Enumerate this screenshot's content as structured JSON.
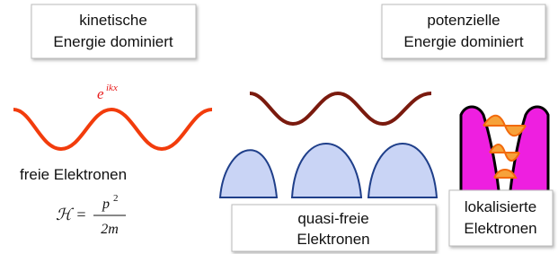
{
  "boxes": {
    "kinetic": {
      "lines": [
        "kinetische",
        "Energie dominiert"
      ]
    },
    "potential": {
      "lines": [
        "potenzielle",
        "Energie dominiert"
      ]
    }
  },
  "plane_wave": {
    "base": "e",
    "exponent": "ikx"
  },
  "free": {
    "label": "freie Elektronen",
    "formula": {
      "lhs": "ℋ =",
      "numerator": "p",
      "exponent": "2",
      "denominator": "2m"
    }
  },
  "quasi_free": {
    "lines": [
      "quasi-freie",
      "Elektronen"
    ]
  },
  "localized": {
    "lines": [
      "lokalisierte",
      "Elektronen"
    ]
  }
}
